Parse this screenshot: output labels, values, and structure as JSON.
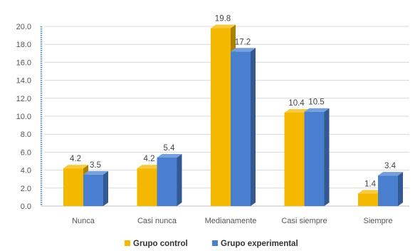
{
  "chart_data": {
    "type": "bar",
    "categories": [
      "Nunca",
      "Casi nunca",
      "Medianamente",
      "Casi siempre",
      "Siempre"
    ],
    "series": [
      {
        "name": "Grupo control",
        "values": [
          4.2,
          4.2,
          19.8,
          10.4,
          1.4
        ],
        "color": "#f5b800"
      },
      {
        "name": "Grupo experimental",
        "values": [
          3.5,
          5.4,
          17.2,
          10.5,
          3.4
        ],
        "color": "#4a7fd0"
      }
    ],
    "value_labels": [
      [
        "4.2",
        "4.2",
        "19.8",
        "10.4",
        "1.4"
      ],
      [
        "3.5",
        "5.4",
        "17.2",
        "10.5",
        "3.4"
      ]
    ],
    "yticks": [
      "0.0",
      "2.0",
      "4.0",
      "6.0",
      "8.0",
      "10.0",
      "12.0",
      "14.0",
      "16.0",
      "18.0",
      "20.0"
    ],
    "ylim": [
      0,
      20
    ],
    "grid": true,
    "legend_position": "bottom",
    "title": "",
    "xlabel": "",
    "ylabel": ""
  }
}
